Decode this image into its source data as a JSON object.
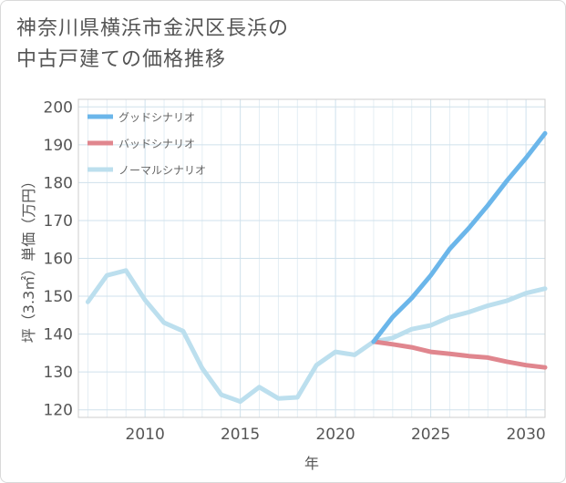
{
  "title_lines": [
    "神奈川県横浜市金沢区長浜の",
    "中古戸建ての価格推移"
  ],
  "chart_data": {
    "type": "line",
    "title": "神奈川県横浜市金沢区長浜の中古戸建ての価格推移",
    "xlabel": "年",
    "ylabel": "坪（3.3㎡）単価（万円）",
    "xlim": [
      2006.5,
      2031
    ],
    "ylim": [
      118,
      202
    ],
    "xticks": [
      2010,
      2015,
      2020,
      2025,
      2030
    ],
    "yticks": [
      120,
      130,
      140,
      150,
      160,
      170,
      180,
      190,
      200
    ],
    "grid": true,
    "legend_position": "top-left",
    "series": [
      {
        "name": "グッドシナリオ",
        "color": "#6bb6ea",
        "x": [
          2022,
          2023,
          2024,
          2025,
          2026,
          2027,
          2028,
          2029,
          2030,
          2031
        ],
        "y": [
          138,
          144.5,
          149.5,
          155.5,
          162.5,
          168,
          174,
          180.5,
          186.5,
          193
        ]
      },
      {
        "name": "バッドシナリオ",
        "color": "#e0868e",
        "x": [
          2022,
          2023,
          2024,
          2025,
          2026,
          2027,
          2028,
          2029,
          2030,
          2031
        ],
        "y": [
          138,
          137.3,
          136.5,
          135.3,
          134.8,
          134.2,
          133.8,
          132.7,
          131.8,
          131.2
        ]
      },
      {
        "name": "ノーマルシナリオ",
        "color": "#bcdfee",
        "x": [
          2007,
          2008,
          2009,
          2010,
          2011,
          2012,
          2013,
          2014,
          2015,
          2016,
          2017,
          2018,
          2019,
          2020,
          2021,
          2022,
          2023,
          2024,
          2025,
          2026,
          2027,
          2028,
          2029,
          2030,
          2031
        ],
        "y": [
          148.5,
          155.5,
          156.8,
          149,
          143,
          140.8,
          131,
          124,
          122.2,
          126,
          123,
          123.3,
          131.8,
          135.3,
          134.5,
          138,
          139,
          141.3,
          142.3,
          144.5,
          145.8,
          147.5,
          148.8,
          150.8,
          152
        ]
      }
    ]
  }
}
